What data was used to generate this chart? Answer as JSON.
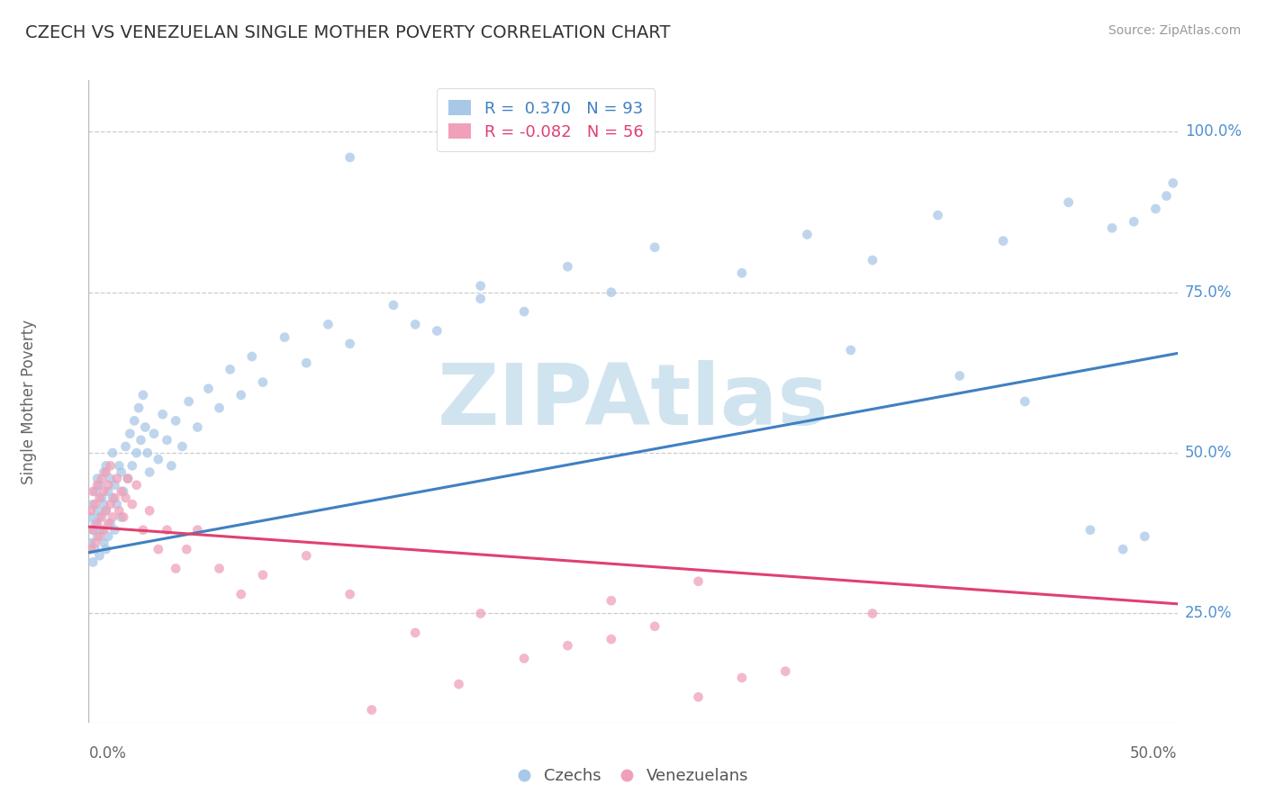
{
  "title": "CZECH VS VENEZUELAN SINGLE MOTHER POVERTY CORRELATION CHART",
  "source": "Source: ZipAtlas.com",
  "ylabel": "Single Mother Poverty",
  "y_tick_labels": [
    "25.0%",
    "50.0%",
    "75.0%",
    "100.0%"
  ],
  "y_tick_values": [
    0.25,
    0.5,
    0.75,
    1.0
  ],
  "xlim": [
    0.0,
    0.5
  ],
  "ylim": [
    0.08,
    1.08
  ],
  "czechs_R": 0.37,
  "czechs_N": 93,
  "venezuelans_R": -0.082,
  "venezuelans_N": 56,
  "czechs_color": "#a8c8e8",
  "venezuelans_color": "#f0a0b8",
  "czechs_line_color": "#4080c0",
  "venezuelans_line_color": "#e04070",
  "right_label_color": "#5090d0",
  "dot_alpha": 0.75,
  "dot_size": 60,
  "watermark": "ZIPAtlas",
  "watermark_color": "#d0e4f0",
  "background_color": "#ffffff",
  "grid_color": "#cccccc",
  "czechs_scatter_x": [
    0.001,
    0.001,
    0.002,
    0.002,
    0.002,
    0.003,
    0.003,
    0.003,
    0.004,
    0.004,
    0.004,
    0.005,
    0.005,
    0.005,
    0.006,
    0.006,
    0.007,
    0.007,
    0.007,
    0.008,
    0.008,
    0.008,
    0.009,
    0.009,
    0.01,
    0.01,
    0.011,
    0.011,
    0.012,
    0.012,
    0.013,
    0.014,
    0.015,
    0.015,
    0.016,
    0.017,
    0.018,
    0.019,
    0.02,
    0.021,
    0.022,
    0.023,
    0.024,
    0.025,
    0.026,
    0.027,
    0.028,
    0.03,
    0.032,
    0.034,
    0.036,
    0.038,
    0.04,
    0.043,
    0.046,
    0.05,
    0.055,
    0.06,
    0.065,
    0.07,
    0.075,
    0.08,
    0.09,
    0.1,
    0.11,
    0.12,
    0.14,
    0.16,
    0.18,
    0.2,
    0.22,
    0.24,
    0.26,
    0.3,
    0.33,
    0.36,
    0.39,
    0.42,
    0.45,
    0.47,
    0.48,
    0.49,
    0.495,
    0.498,
    0.12,
    0.15,
    0.18,
    0.35,
    0.4,
    0.43,
    0.46,
    0.475,
    0.485
  ],
  "czechs_scatter_y": [
    0.36,
    0.4,
    0.33,
    0.38,
    0.42,
    0.35,
    0.39,
    0.44,
    0.37,
    0.41,
    0.46,
    0.34,
    0.4,
    0.45,
    0.38,
    0.43,
    0.36,
    0.42,
    0.47,
    0.35,
    0.41,
    0.48,
    0.37,
    0.44,
    0.39,
    0.46,
    0.43,
    0.5,
    0.38,
    0.45,
    0.42,
    0.48,
    0.4,
    0.47,
    0.44,
    0.51,
    0.46,
    0.53,
    0.48,
    0.55,
    0.5,
    0.57,
    0.52,
    0.59,
    0.54,
    0.5,
    0.47,
    0.53,
    0.49,
    0.56,
    0.52,
    0.48,
    0.55,
    0.51,
    0.58,
    0.54,
    0.6,
    0.57,
    0.63,
    0.59,
    0.65,
    0.61,
    0.68,
    0.64,
    0.7,
    0.67,
    0.73,
    0.69,
    0.76,
    0.72,
    0.79,
    0.75,
    0.82,
    0.78,
    0.84,
    0.8,
    0.87,
    0.83,
    0.89,
    0.85,
    0.86,
    0.88,
    0.9,
    0.92,
    0.96,
    0.7,
    0.74,
    0.66,
    0.62,
    0.58,
    0.38,
    0.35,
    0.37
  ],
  "venezuelans_scatter_x": [
    0.001,
    0.001,
    0.002,
    0.002,
    0.003,
    0.003,
    0.004,
    0.004,
    0.005,
    0.005,
    0.006,
    0.006,
    0.007,
    0.007,
    0.008,
    0.008,
    0.009,
    0.009,
    0.01,
    0.01,
    0.011,
    0.012,
    0.013,
    0.014,
    0.015,
    0.016,
    0.017,
    0.018,
    0.02,
    0.022,
    0.025,
    0.028,
    0.032,
    0.036,
    0.04,
    0.045,
    0.05,
    0.06,
    0.07,
    0.08,
    0.1,
    0.12,
    0.15,
    0.18,
    0.22,
    0.26,
    0.3,
    0.2,
    0.24,
    0.28,
    0.32,
    0.36,
    0.28,
    0.24,
    0.13,
    0.17
  ],
  "venezuelans_scatter_y": [
    0.35,
    0.41,
    0.38,
    0.44,
    0.36,
    0.42,
    0.39,
    0.45,
    0.37,
    0.43,
    0.4,
    0.46,
    0.38,
    0.44,
    0.41,
    0.47,
    0.39,
    0.45,
    0.42,
    0.48,
    0.4,
    0.43,
    0.46,
    0.41,
    0.44,
    0.4,
    0.43,
    0.46,
    0.42,
    0.45,
    0.38,
    0.41,
    0.35,
    0.38,
    0.32,
    0.35,
    0.38,
    0.32,
    0.28,
    0.31,
    0.34,
    0.28,
    0.22,
    0.25,
    0.2,
    0.23,
    0.15,
    0.18,
    0.21,
    0.12,
    0.16,
    0.25,
    0.3,
    0.27,
    0.1,
    0.14
  ],
  "czechs_trend_x": [
    0.0,
    0.5
  ],
  "czechs_trend_y": [
    0.345,
    0.655
  ],
  "venezuelans_trend_x": [
    0.0,
    0.5
  ],
  "venezuelans_trend_y": [
    0.385,
    0.265
  ]
}
